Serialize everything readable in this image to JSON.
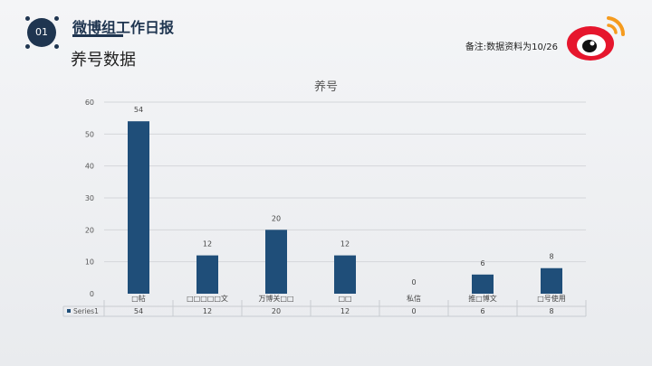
{
  "header": {
    "badge": "01",
    "title": "微博组工作日报"
  },
  "section": {
    "title": "养号数据"
  },
  "note": "备注:数据资料为10/26",
  "logo": {
    "icon": "weibo-logo-icon",
    "colors": {
      "red": "#e6162d",
      "orange": "#f59b1e"
    }
  },
  "colors": {
    "bar": "#1f4e79",
    "badge": "#1f3550"
  },
  "chart_data": {
    "type": "bar",
    "title": "养号",
    "categories": [
      "□帖",
      "□□□□□文",
      "万博关□□",
      "□□",
      "私信",
      "推□博文",
      "□号使用"
    ],
    "series": [
      {
        "name": "Series1",
        "values": [
          54,
          12,
          20,
          12,
          0,
          6,
          8
        ]
      }
    ],
    "ylim": [
      0,
      60
    ],
    "yticks": [
      0,
      10,
      20,
      30,
      40,
      50,
      60
    ],
    "grid": true,
    "legend": "data-table"
  }
}
